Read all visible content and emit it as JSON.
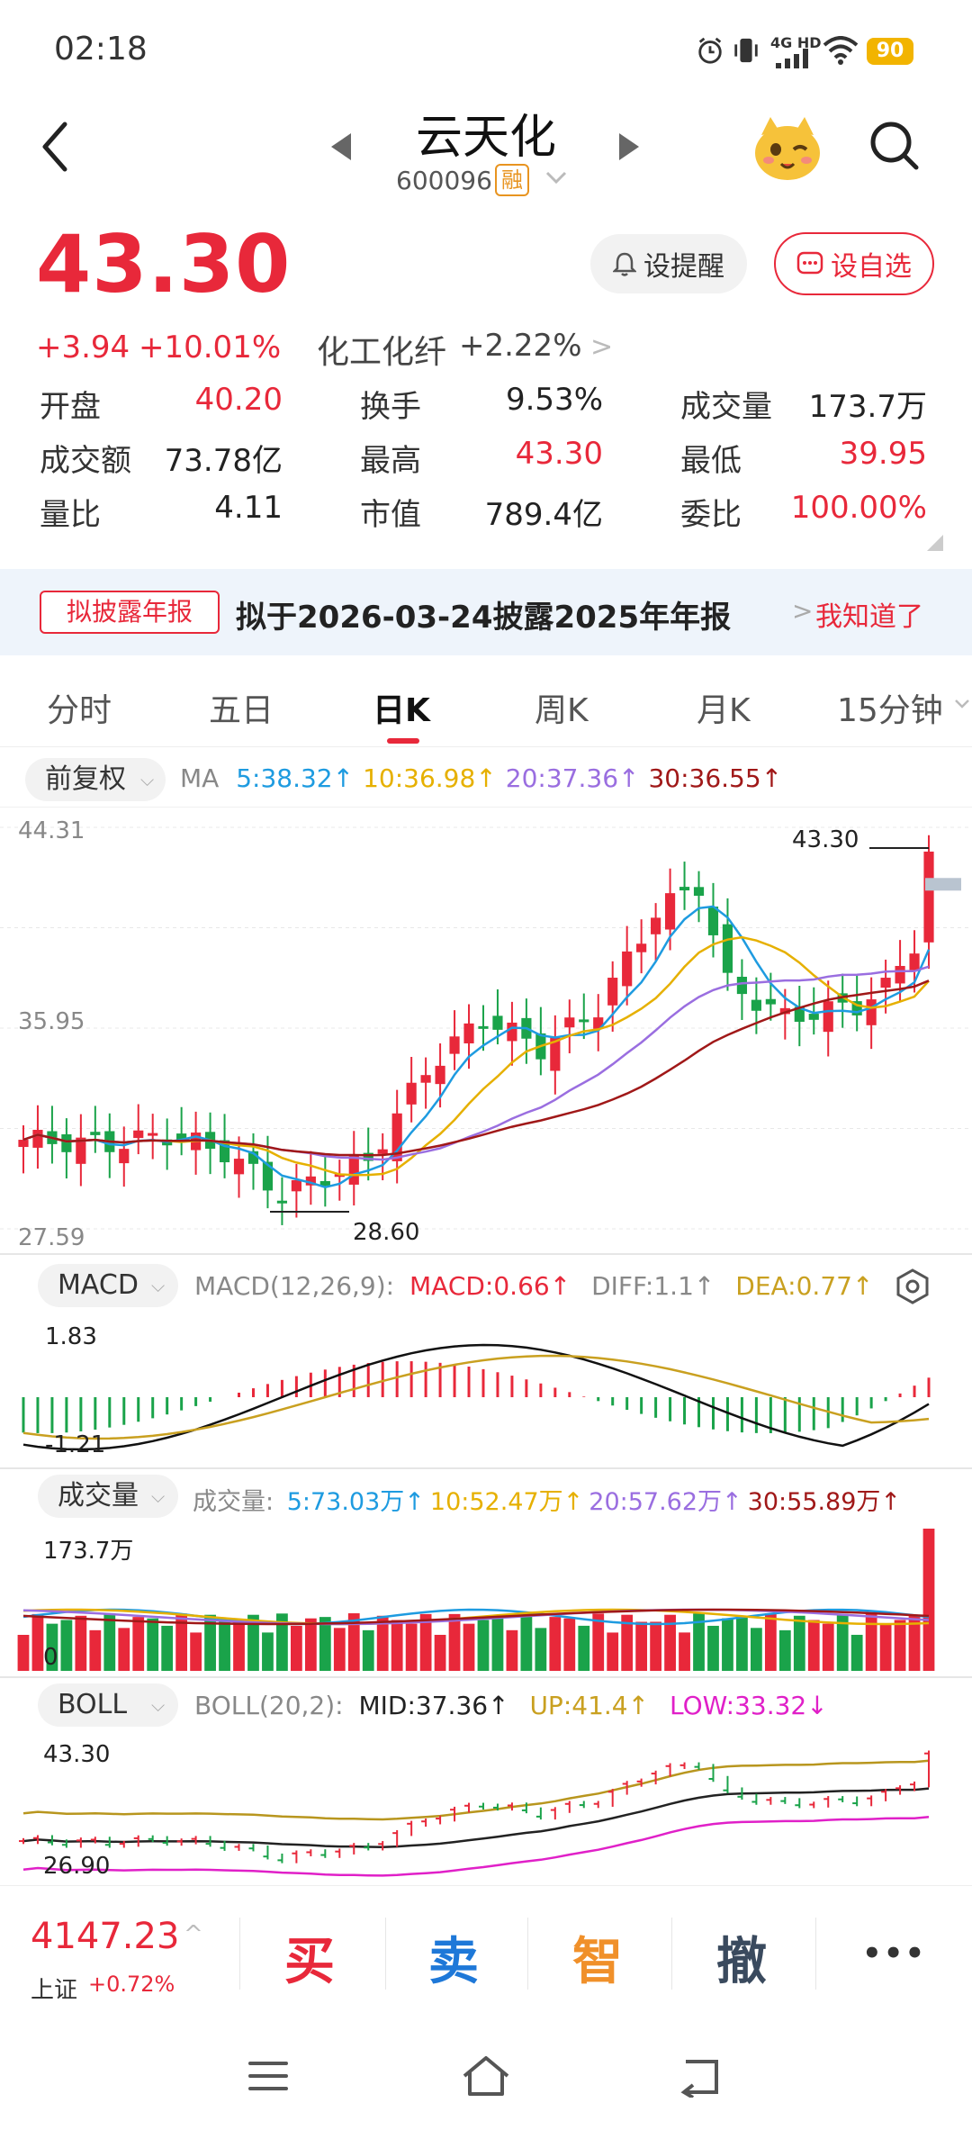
{
  "status_bar": {
    "time": "02:18",
    "network": "4G HD",
    "battery": "90"
  },
  "header": {
    "stock_name": "云天化",
    "stock_code": "600096",
    "margin_badge": "融"
  },
  "quote": {
    "last_price": "43.30",
    "change_amount": "+3.94",
    "change_pct": "+10.01%",
    "sector_name": "化工化纤",
    "sector_change": "+2.22%",
    "alert_label": "设提醒",
    "watchlist_label": "设自选",
    "stats": [
      {
        "label": "开盘",
        "value": "40.20",
        "color": "red"
      },
      {
        "label": "换手",
        "value": "9.53%",
        "color": "dark"
      },
      {
        "label": "成交量",
        "value": "173.7万",
        "color": "dark"
      },
      {
        "label": "成交额",
        "value": "73.78亿",
        "color": "dark"
      },
      {
        "label": "最高",
        "value": "43.30",
        "color": "red"
      },
      {
        "label": "最低",
        "value": "39.95",
        "color": "red"
      },
      {
        "label": "量比",
        "value": "4.11",
        "color": "dark"
      },
      {
        "label": "市值",
        "value": "789.4亿",
        "color": "dark"
      },
      {
        "label": "委比",
        "value": "100.00%",
        "color": "red"
      }
    ]
  },
  "notice": {
    "tag": "拟披露年报",
    "text": "拟于2026-03-24披露2025年年报",
    "ack": "我知道了"
  },
  "tabs": [
    "分时",
    "五日",
    "日K",
    "周K",
    "月K",
    "15分钟"
  ],
  "active_tab": 2,
  "kline": {
    "adjust_label": "前复权",
    "ma_title": "MA",
    "ma": [
      {
        "text": "5:38.32↑",
        "color": "#1e9be0"
      },
      {
        "text": "10:36.98↑",
        "color": "#e6b000"
      },
      {
        "text": "20:37.36↑",
        "color": "#9a6ee0"
      },
      {
        "text": "30:36.55↑",
        "color": "#a01818"
      }
    ],
    "y_top": "44.31",
    "y_mid": "35.95",
    "y_bottom": "27.59",
    "high_label": "43.30",
    "low_label": "28.60"
  },
  "macd": {
    "chip": "MACD",
    "params": "MACD(12,26,9):",
    "macd": "MACD:0.66↑",
    "diff": "DIFF:1.1↑",
    "dea": "DEA:0.77↑",
    "y_top": "1.83",
    "y_bottom": "-1.21"
  },
  "volume": {
    "chip": "成交量",
    "title": "成交量:",
    "ma": [
      {
        "text": "5:73.03万↑",
        "color": "#1e9be0"
      },
      {
        "text": "10:52.47万↑",
        "color": "#e6b000"
      },
      {
        "text": "20:57.62万↑",
        "color": "#9a6ee0"
      },
      {
        "text": "30:55.89万↑",
        "color": "#a01818"
      }
    ],
    "y_top": "173.7万",
    "y_zero": "0"
  },
  "boll": {
    "chip": "BOLL",
    "params": "BOLL(20,2):",
    "mid": "MID:37.36↑",
    "up": "UP:41.4↑",
    "low": "LOW:33.32↓",
    "y_top": "43.30",
    "y_bottom": "26.90"
  },
  "index": {
    "value": "4147.23",
    "name": "上证",
    "change": "+0.72%"
  },
  "trade_buttons": [
    {
      "label": "买",
      "color": "#e8283a"
    },
    {
      "label": "卖",
      "color": "#1e78d8"
    },
    {
      "label": "智",
      "color": "#f0902a"
    },
    {
      "label": "撤",
      "color": "#3a4a5e"
    }
  ],
  "more_label": "•••"
}
